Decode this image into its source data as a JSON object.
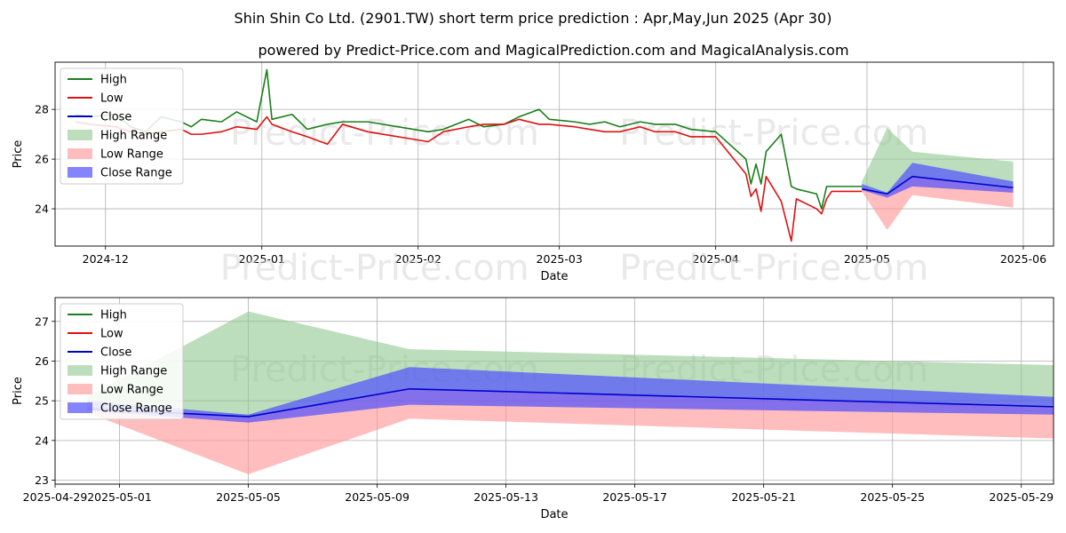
{
  "title_line1": "Shin Shin Co Ltd. (2901.TW) short term price prediction : Apr,May,Jun 2025 (Apr 30)",
  "title_line2": "powered by Predict-Price.com and MagicalPrediction.com and MagicalAnalysis.com",
  "watermark": "Predict-Price.com",
  "colors": {
    "high": "#1a7f1a",
    "low": "#dd1111",
    "close": "#0000cc",
    "high_range": "#90c890",
    "low_range": "#ff9a9a",
    "close_range": "#5050ff",
    "grid": "#b0b0b0"
  },
  "legend": [
    "High",
    "Low",
    "Close",
    "High Range",
    "Low Range",
    "Close Range"
  ],
  "chart_data": [
    {
      "type": "line",
      "xlabel": "Date",
      "ylabel": "Price",
      "x_range": [
        "2024-11-21",
        "2025-06-07"
      ],
      "ylim": [
        22.5,
        29.9
      ],
      "x_ticks": [
        "2024-12-01",
        "2025-01-01",
        "2025-02-01",
        "2025-03-01",
        "2025-04-01",
        "2025-05-01",
        "2025-06-01"
      ],
      "x_tick_labels": [
        "2024-12",
        "2025-01",
        "2025-02",
        "2025-03",
        "2025-04",
        "2025-05",
        "2025-06"
      ],
      "y_ticks": [
        24,
        26,
        28
      ],
      "grid": true,
      "legend_position": "upper-left",
      "series": [
        {
          "name": "High",
          "x": [
            "2024-11-25",
            "2024-11-28",
            "2024-12-03",
            "2024-12-06",
            "2024-12-09",
            "2024-12-12",
            "2024-12-16",
            "2024-12-18",
            "2024-12-20",
            "2024-12-24",
            "2024-12-27",
            "2024-12-31",
            "2025-01-02",
            "2025-01-03",
            "2025-01-07",
            "2025-01-10",
            "2025-01-14",
            "2025-01-17",
            "2025-01-22",
            "2025-02-03",
            "2025-02-06",
            "2025-02-11",
            "2025-02-14",
            "2025-02-18",
            "2025-02-21",
            "2025-02-25",
            "2025-02-27",
            "2025-03-04",
            "2025-03-07",
            "2025-03-10",
            "2025-03-13",
            "2025-03-17",
            "2025-03-20",
            "2025-03-24",
            "2025-03-27",
            "2025-04-01",
            "2025-04-07",
            "2025-04-08",
            "2025-04-09",
            "2025-04-10",
            "2025-04-11",
            "2025-04-14",
            "2025-04-16",
            "2025-04-17",
            "2025-04-21",
            "2025-04-22",
            "2025-04-23",
            "2025-04-24",
            "2025-04-29",
            "2025-04-30"
          ],
          "values": [
            27.8,
            27.7,
            27.8,
            27.3,
            27.1,
            27.7,
            27.5,
            27.3,
            27.6,
            27.5,
            27.9,
            27.5,
            29.6,
            27.6,
            27.8,
            27.2,
            27.4,
            27.5,
            27.5,
            27.1,
            27.2,
            27.6,
            27.3,
            27.4,
            27.7,
            28.0,
            27.6,
            27.5,
            27.4,
            27.5,
            27.3,
            27.5,
            27.4,
            27.4,
            27.2,
            27.1,
            26.0,
            25.0,
            25.8,
            25.0,
            26.3,
            27.0,
            24.9,
            24.8,
            24.6,
            24.0,
            24.9,
            24.9,
            24.9,
            24.9
          ]
        },
        {
          "name": "Low",
          "x": [
            "2024-11-25",
            "2024-11-28",
            "2024-12-03",
            "2024-12-06",
            "2024-12-09",
            "2024-12-12",
            "2024-12-16",
            "2024-12-18",
            "2024-12-20",
            "2024-12-24",
            "2024-12-27",
            "2024-12-31",
            "2025-01-02",
            "2025-01-03",
            "2025-01-07",
            "2025-01-10",
            "2025-01-14",
            "2025-01-17",
            "2025-01-22",
            "2025-02-03",
            "2025-02-06",
            "2025-02-11",
            "2025-02-14",
            "2025-02-18",
            "2025-02-21",
            "2025-02-25",
            "2025-02-27",
            "2025-03-04",
            "2025-03-07",
            "2025-03-10",
            "2025-03-13",
            "2025-03-17",
            "2025-03-20",
            "2025-03-24",
            "2025-03-27",
            "2025-04-01",
            "2025-04-07",
            "2025-04-08",
            "2025-04-09",
            "2025-04-10",
            "2025-04-11",
            "2025-04-14",
            "2025-04-16",
            "2025-04-17",
            "2025-04-21",
            "2025-04-22",
            "2025-04-23",
            "2025-04-24",
            "2025-04-29",
            "2025-04-30"
          ],
          "values": [
            27.5,
            27.4,
            27.3,
            27.1,
            27.0,
            27.1,
            27.2,
            27.0,
            27.0,
            27.1,
            27.3,
            27.2,
            27.7,
            27.4,
            27.1,
            26.9,
            26.6,
            27.4,
            27.1,
            26.7,
            27.1,
            27.3,
            27.4,
            27.4,
            27.6,
            27.4,
            27.4,
            27.3,
            27.2,
            27.1,
            27.1,
            27.3,
            27.1,
            27.1,
            26.9,
            26.9,
            25.4,
            24.5,
            24.8,
            23.9,
            25.3,
            24.3,
            22.7,
            24.4,
            24.0,
            23.8,
            24.4,
            24.7,
            24.7,
            24.7
          ]
        },
        {
          "name": "Close",
          "x": [
            "2025-04-30",
            "2025-05-05",
            "2025-05-10",
            "2025-05-30"
          ],
          "values": [
            24.8,
            24.6,
            25.3,
            24.85
          ]
        },
        {
          "name": "High Range",
          "x": [
            "2025-04-30",
            "2025-05-05",
            "2025-05-10",
            "2025-05-30"
          ],
          "upper": [
            25.1,
            27.25,
            26.3,
            25.9
          ],
          "lower": [
            24.8,
            24.6,
            25.3,
            24.85
          ]
        },
        {
          "name": "Low Range",
          "x": [
            "2025-04-30",
            "2025-05-05",
            "2025-05-10",
            "2025-05-30"
          ],
          "upper": [
            24.8,
            24.6,
            25.3,
            24.85
          ],
          "lower": [
            24.7,
            23.15,
            24.55,
            24.05
          ]
        },
        {
          "name": "Close Range",
          "x": [
            "2025-04-30",
            "2025-05-05",
            "2025-05-10",
            "2025-05-30"
          ],
          "upper": [
            25.0,
            24.65,
            25.85,
            25.1
          ],
          "lower": [
            24.75,
            24.45,
            24.9,
            24.65
          ]
        }
      ]
    },
    {
      "type": "line",
      "xlabel": "Date",
      "ylabel": "Price",
      "x_range": [
        "2025-04-29",
        "2025-05-30"
      ],
      "ylim": [
        22.9,
        27.6
      ],
      "x_ticks": [
        "2025-04-29",
        "2025-05-01",
        "2025-05-05",
        "2025-05-09",
        "2025-05-13",
        "2025-05-17",
        "2025-05-21",
        "2025-05-25",
        "2025-05-29"
      ],
      "y_ticks": [
        23,
        24,
        25,
        26,
        27
      ],
      "grid": true,
      "legend_position": "upper-left",
      "series": [
        {
          "name": "High",
          "x": [
            "2025-04-30"
          ],
          "values": [
            24.9
          ]
        },
        {
          "name": "Low",
          "x": [
            "2025-04-30"
          ],
          "values": [
            24.7
          ]
        },
        {
          "name": "Close",
          "x": [
            "2025-04-30",
            "2025-05-05",
            "2025-05-10",
            "2025-05-30"
          ],
          "values": [
            24.8,
            24.6,
            25.3,
            24.85
          ]
        },
        {
          "name": "High Range",
          "x": [
            "2025-04-30",
            "2025-05-05",
            "2025-05-10",
            "2025-05-30"
          ],
          "upper": [
            25.1,
            27.25,
            26.3,
            25.9
          ],
          "lower": [
            24.8,
            24.6,
            25.3,
            24.85
          ]
        },
        {
          "name": "Low Range",
          "x": [
            "2025-04-30",
            "2025-05-05",
            "2025-05-10",
            "2025-05-30"
          ],
          "upper": [
            24.8,
            24.6,
            25.3,
            24.85
          ],
          "lower": [
            24.7,
            23.15,
            24.55,
            24.05
          ]
        },
        {
          "name": "Close Range",
          "x": [
            "2025-04-30",
            "2025-05-05",
            "2025-05-10",
            "2025-05-30"
          ],
          "upper": [
            25.0,
            24.65,
            25.85,
            25.1
          ],
          "lower": [
            24.75,
            24.45,
            24.9,
            24.65
          ]
        }
      ]
    }
  ]
}
